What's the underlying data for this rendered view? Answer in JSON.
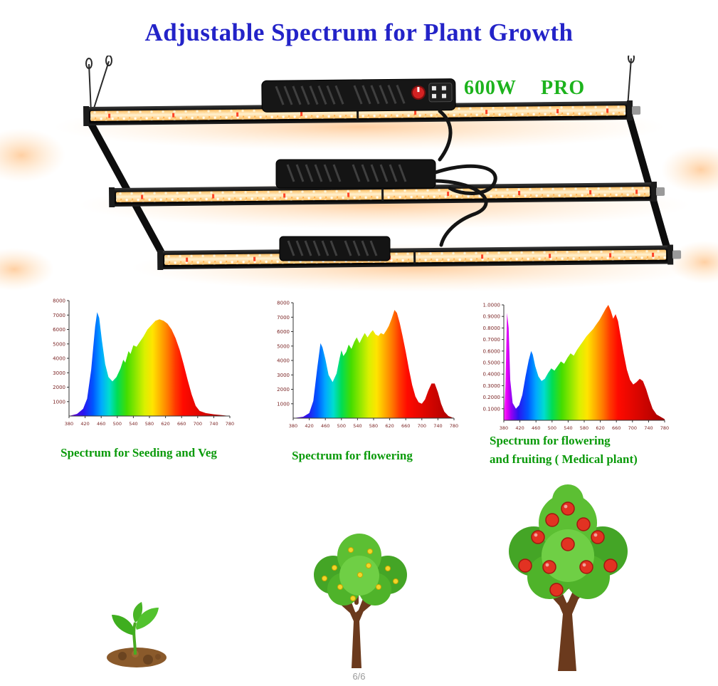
{
  "title": "Adjustable Spectrum for Plant Growth",
  "product_label": {
    "wattage": "600W",
    "series": "PRO"
  },
  "footer": {
    "page_indicator": "6/6"
  },
  "colors": {
    "title": "#2323c8",
    "product_label": "#1db31d",
    "captions": "#0a9a0a",
    "led_glow": "#ffb060",
    "fixture_body": "#111111"
  },
  "illustrations": {
    "fixture": "grow-light-fixture",
    "stage1": "seedling",
    "stage2": "flowering-tree",
    "stage3": "fruiting-tree"
  },
  "chart_data": [
    {
      "type": "area",
      "title": "Spectrum for Seeding and Veg",
      "caption_line1": "Spectrum for Seeding and Veg",
      "xlabel": "",
      "ylabel": "",
      "ylim": [
        0,
        8000
      ],
      "y_ticks": [
        "8000",
        "7000",
        "6000",
        "5000",
        "4000",
        "3000",
        "2000",
        "1000"
      ],
      "x_ticks": [
        380,
        420,
        460,
        500,
        540,
        580,
        620,
        660,
        700,
        740,
        780
      ],
      "gradient": [
        [
          0,
          "#7a00d0"
        ],
        [
          0.09,
          "#2a14f0"
        ],
        [
          0.15,
          "#0057ff"
        ],
        [
          0.2,
          "#00a8ff"
        ],
        [
          0.25,
          "#00ddd0"
        ],
        [
          0.3,
          "#00dd55"
        ],
        [
          0.36,
          "#44dd00"
        ],
        [
          0.42,
          "#95e800"
        ],
        [
          0.47,
          "#d9f000"
        ],
        [
          0.52,
          "#ffe400"
        ],
        [
          0.57,
          "#ffad00"
        ],
        [
          0.62,
          "#ff7300"
        ],
        [
          0.66,
          "#ff3a00"
        ],
        [
          0.71,
          "#ff0a00"
        ],
        [
          1,
          "#a60000"
        ]
      ],
      "points": [
        [
          380,
          0
        ],
        [
          400,
          150
        ],
        [
          415,
          500
        ],
        [
          425,
          1200
        ],
        [
          435,
          3200
        ],
        [
          445,
          6200
        ],
        [
          450,
          7200
        ],
        [
          455,
          6800
        ],
        [
          462,
          5200
        ],
        [
          470,
          3600
        ],
        [
          478,
          2700
        ],
        [
          488,
          2400
        ],
        [
          498,
          2700
        ],
        [
          508,
          3300
        ],
        [
          515,
          3900
        ],
        [
          520,
          3700
        ],
        [
          528,
          4500
        ],
        [
          533,
          4300
        ],
        [
          540,
          4900
        ],
        [
          548,
          4800
        ],
        [
          555,
          5100
        ],
        [
          565,
          5500
        ],
        [
          575,
          6000
        ],
        [
          585,
          6300
        ],
        [
          595,
          6600
        ],
        [
          605,
          6700
        ],
        [
          615,
          6600
        ],
        [
          625,
          6400
        ],
        [
          635,
          6000
        ],
        [
          645,
          5400
        ],
        [
          655,
          4600
        ],
        [
          665,
          3600
        ],
        [
          675,
          2500
        ],
        [
          685,
          1500
        ],
        [
          695,
          700
        ],
        [
          705,
          350
        ],
        [
          720,
          200
        ],
        [
          740,
          120
        ],
        [
          760,
          60
        ],
        [
          780,
          0
        ]
      ]
    },
    {
      "type": "area",
      "title": "Spectrum for flowering",
      "caption_line1": "Spectrum for flowering",
      "xlabel": "",
      "ylabel": "",
      "ylim": [
        0,
        8000
      ],
      "y_ticks": [
        "8000",
        "7000",
        "6000",
        "5000",
        "4000",
        "3000",
        "2000",
        "1000"
      ],
      "x_ticks": [
        380,
        420,
        460,
        500,
        540,
        580,
        620,
        660,
        700,
        740,
        780
      ],
      "gradient": [
        [
          0,
          "#7a00d0"
        ],
        [
          0.09,
          "#2a14f0"
        ],
        [
          0.15,
          "#0057ff"
        ],
        [
          0.2,
          "#00a8ff"
        ],
        [
          0.25,
          "#00ddd0"
        ],
        [
          0.3,
          "#00dd55"
        ],
        [
          0.36,
          "#44dd00"
        ],
        [
          0.42,
          "#95e800"
        ],
        [
          0.47,
          "#d9f000"
        ],
        [
          0.52,
          "#ffe400"
        ],
        [
          0.57,
          "#ffad00"
        ],
        [
          0.62,
          "#ff7300"
        ],
        [
          0.66,
          "#ff3a00"
        ],
        [
          0.71,
          "#ff0a00"
        ],
        [
          1,
          "#a60000"
        ]
      ],
      "points": [
        [
          380,
          0
        ],
        [
          405,
          100
        ],
        [
          420,
          350
        ],
        [
          430,
          1200
        ],
        [
          440,
          3500
        ],
        [
          448,
          5200
        ],
        [
          453,
          4900
        ],
        [
          460,
          4100
        ],
        [
          468,
          3000
        ],
        [
          478,
          2500
        ],
        [
          488,
          3100
        ],
        [
          495,
          4100
        ],
        [
          500,
          4700
        ],
        [
          505,
          4300
        ],
        [
          512,
          4600
        ],
        [
          518,
          5100
        ],
        [
          525,
          4800
        ],
        [
          532,
          5300
        ],
        [
          538,
          5600
        ],
        [
          545,
          5200
        ],
        [
          552,
          5600
        ],
        [
          558,
          5900
        ],
        [
          565,
          5600
        ],
        [
          572,
          5900
        ],
        [
          578,
          6100
        ],
        [
          585,
          5800
        ],
        [
          592,
          5700
        ],
        [
          598,
          5900
        ],
        [
          605,
          5800
        ],
        [
          612,
          6100
        ],
        [
          618,
          6400
        ],
        [
          625,
          6900
        ],
        [
          632,
          7500
        ],
        [
          638,
          7300
        ],
        [
          645,
          6600
        ],
        [
          652,
          5700
        ],
        [
          660,
          4600
        ],
        [
          668,
          3400
        ],
        [
          676,
          2300
        ],
        [
          684,
          1500
        ],
        [
          692,
          1100
        ],
        [
          700,
          1000
        ],
        [
          708,
          1300
        ],
        [
          716,
          1900
        ],
        [
          724,
          2400
        ],
        [
          732,
          2400
        ],
        [
          740,
          1800
        ],
        [
          748,
          1000
        ],
        [
          756,
          450
        ],
        [
          766,
          150
        ],
        [
          780,
          0
        ]
      ]
    },
    {
      "type": "area",
      "title": "Spectrum for flowering and fruiting ( Medical plant)",
      "caption_line1": "Spectrum for flowering",
      "caption_line2": "and fruiting ( Medical plant)",
      "xlabel": "",
      "ylabel": "",
      "ylim": [
        0,
        1.0
      ],
      "y_ticks": [
        "1.0000",
        "0.9000",
        "0.8000",
        "0.7000",
        "0.6000",
        "0.5000",
        "0.4000",
        "0.3000",
        "0.2000",
        "0.1000"
      ],
      "x_ticks": [
        380,
        420,
        460,
        500,
        540,
        580,
        620,
        660,
        700,
        740,
        780
      ],
      "gradient": [
        [
          0,
          "#ff30ff"
        ],
        [
          0.02,
          "#e800f8"
        ],
        [
          0.045,
          "#9900f2"
        ],
        [
          0.09,
          "#2a14f0"
        ],
        [
          0.15,
          "#0057ff"
        ],
        [
          0.2,
          "#00a8ff"
        ],
        [
          0.25,
          "#00ddd0"
        ],
        [
          0.3,
          "#00dd55"
        ],
        [
          0.36,
          "#44dd00"
        ],
        [
          0.42,
          "#95e800"
        ],
        [
          0.47,
          "#d9f000"
        ],
        [
          0.52,
          "#ffe400"
        ],
        [
          0.57,
          "#ffad00"
        ],
        [
          0.62,
          "#ff7300"
        ],
        [
          0.66,
          "#ff3a00"
        ],
        [
          0.71,
          "#ff0a00"
        ],
        [
          1,
          "#a60000"
        ]
      ],
      "points": [
        [
          380,
          0.02
        ],
        [
          384,
          0.3
        ],
        [
          388,
          0.93
        ],
        [
          392,
          0.8
        ],
        [
          396,
          0.35
        ],
        [
          402,
          0.15
        ],
        [
          410,
          0.1
        ],
        [
          418,
          0.13
        ],
        [
          426,
          0.22
        ],
        [
          434,
          0.38
        ],
        [
          442,
          0.52
        ],
        [
          448,
          0.6
        ],
        [
          452,
          0.57
        ],
        [
          458,
          0.47
        ],
        [
          466,
          0.38
        ],
        [
          474,
          0.34
        ],
        [
          482,
          0.36
        ],
        [
          490,
          0.41
        ],
        [
          498,
          0.45
        ],
        [
          506,
          0.43
        ],
        [
          514,
          0.47
        ],
        [
          522,
          0.51
        ],
        [
          530,
          0.49
        ],
        [
          538,
          0.54
        ],
        [
          546,
          0.58
        ],
        [
          554,
          0.56
        ],
        [
          562,
          0.61
        ],
        [
          570,
          0.65
        ],
        [
          578,
          0.69
        ],
        [
          586,
          0.73
        ],
        [
          594,
          0.76
        ],
        [
          602,
          0.79
        ],
        [
          610,
          0.83
        ],
        [
          618,
          0.87
        ],
        [
          626,
          0.92
        ],
        [
          634,
          0.97
        ],
        [
          640,
          1.0
        ],
        [
          646,
          0.95
        ],
        [
          652,
          0.88
        ],
        [
          658,
          0.92
        ],
        [
          664,
          0.86
        ],
        [
          670,
          0.74
        ],
        [
          678,
          0.58
        ],
        [
          686,
          0.44
        ],
        [
          694,
          0.35
        ],
        [
          702,
          0.31
        ],
        [
          710,
          0.33
        ],
        [
          718,
          0.36
        ],
        [
          726,
          0.34
        ],
        [
          734,
          0.27
        ],
        [
          742,
          0.18
        ],
        [
          750,
          0.1
        ],
        [
          760,
          0.05
        ],
        [
          780,
          0.01
        ]
      ]
    }
  ]
}
